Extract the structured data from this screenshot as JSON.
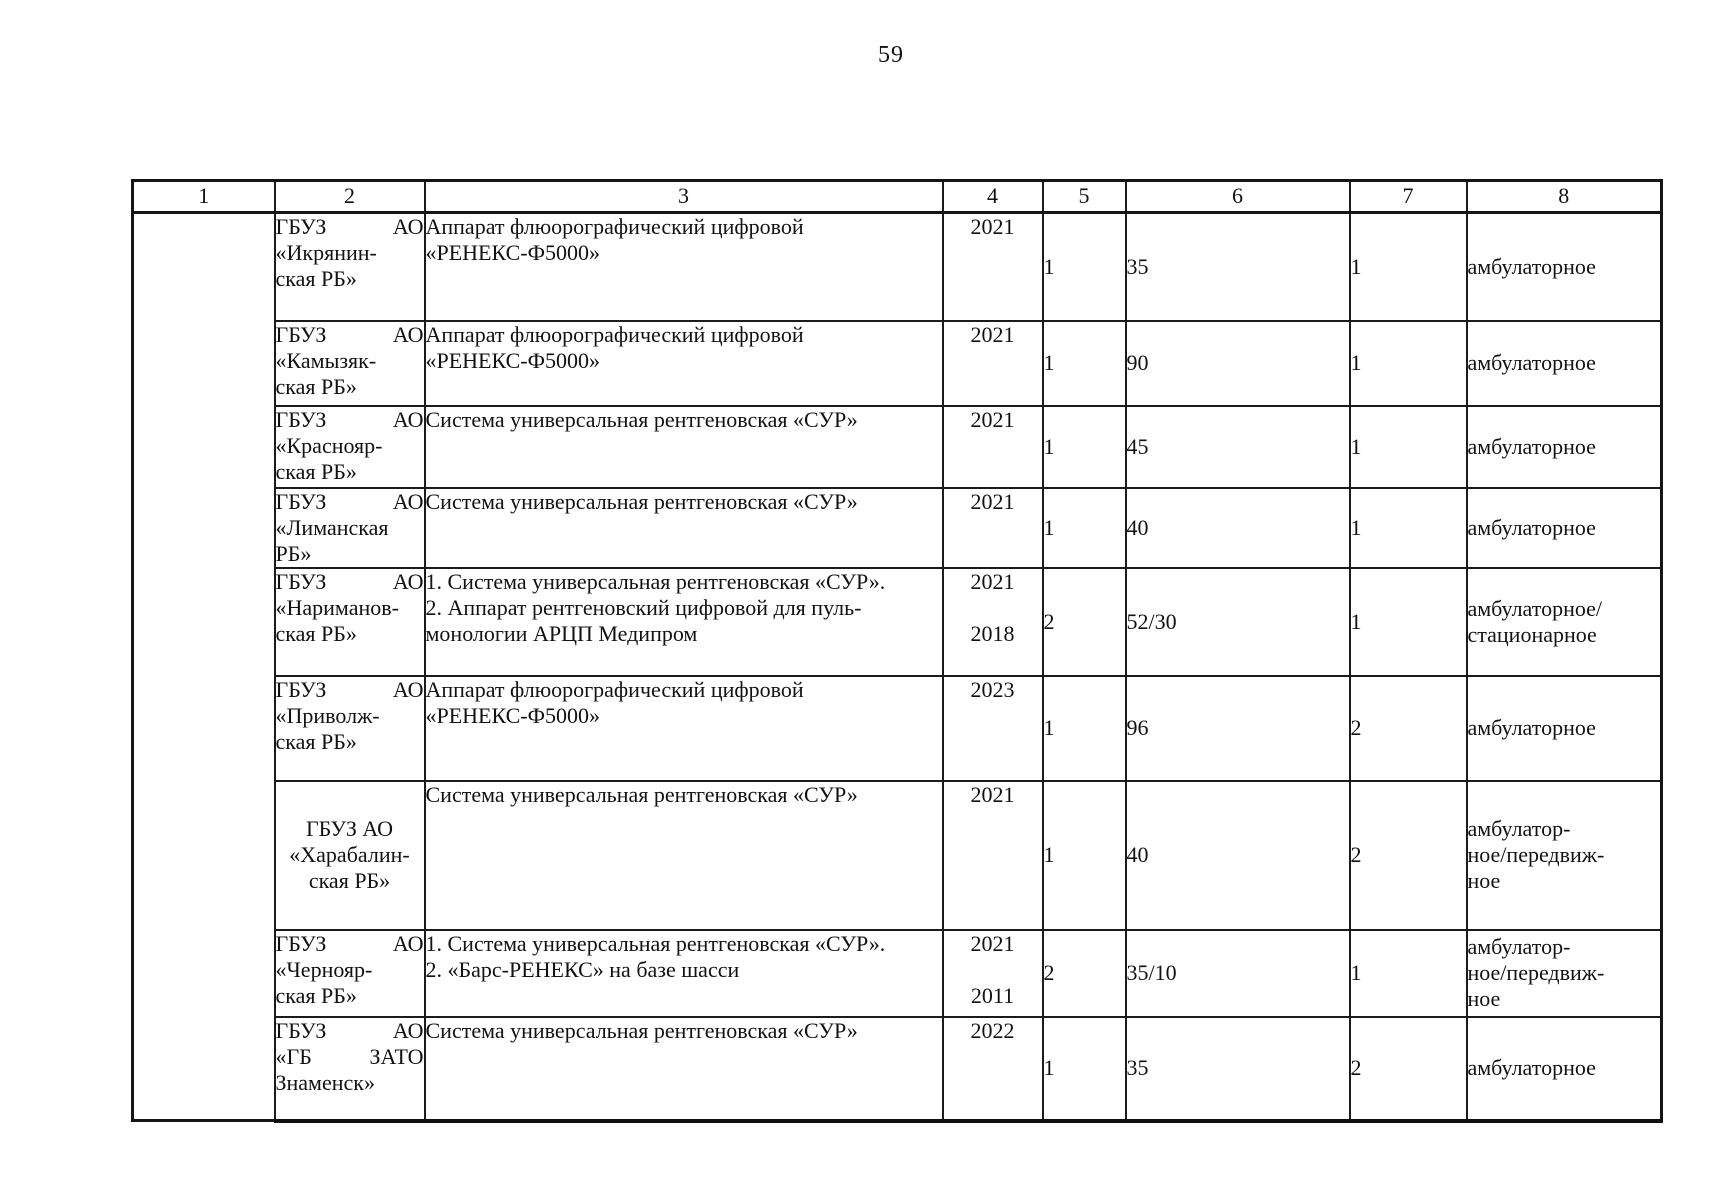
{
  "page": {
    "number": "59"
  },
  "table": {
    "column_headers": [
      "1",
      "2",
      "3",
      "4",
      "5",
      "6",
      "7",
      "8"
    ],
    "rows": [
      {
        "facility_lines": [
          [
            "ГБУЗ",
            "АО"
          ],
          "«Икрянин-",
          "ская РБ»"
        ],
        "equipment_lines": [
          "Аппарат флюорографический цифровой",
          "«РЕНЕКС-Ф5000»"
        ],
        "year_lines": [
          "2021"
        ],
        "quantity": "1",
        "capacity": "35",
        "units": "1",
        "care_type_lines": [
          "амбулаторное"
        ]
      },
      {
        "facility_lines": [
          [
            "ГБУЗ",
            "АО"
          ],
          "«Камызяк-",
          "ская РБ»"
        ],
        "equipment_lines": [
          "Аппарат флюорографический цифровой",
          "«РЕНЕКС-Ф5000»"
        ],
        "year_lines": [
          "2021"
        ],
        "quantity": "1",
        "capacity": "90",
        "units": "1",
        "care_type_lines": [
          "амбулаторное"
        ]
      },
      {
        "facility_lines": [
          [
            "ГБУЗ",
            "АО"
          ],
          "«Краснояр-",
          "ская РБ»"
        ],
        "equipment_lines": [
          "Система универсальная рентгеновская «СУР»"
        ],
        "year_lines": [
          "2021"
        ],
        "quantity": "1",
        "capacity": "45",
        "units": "1",
        "care_type_lines": [
          "амбулаторное"
        ]
      },
      {
        "facility_lines": [
          [
            "ГБУЗ",
            "АО"
          ],
          "«Лиманская",
          "РБ»"
        ],
        "equipment_lines": [
          "Система универсальная рентгеновская «СУР»"
        ],
        "year_lines": [
          "2021"
        ],
        "quantity": "1",
        "capacity": "40",
        "units": "1",
        "care_type_lines": [
          "амбулаторное"
        ]
      },
      {
        "facility_lines": [
          [
            "ГБУЗ",
            "АО"
          ],
          "«Нариманов-",
          "ская РБ»"
        ],
        "equipment_lines": [
          "1. Система универсальная рентгеновская «СУР».",
          "2. Аппарат рентгеновский цифровой для пуль-",
          "монологии АРЦП Медипром"
        ],
        "year_lines": [
          "2021",
          "",
          "2018"
        ],
        "quantity": "2",
        "capacity": "52/30",
        "units": "1",
        "care_type_lines": [
          "амбулаторное/",
          "стационарное"
        ]
      },
      {
        "facility_lines": [
          [
            "ГБУЗ",
            "АО"
          ],
          "«Приволж-",
          "ская РБ»"
        ],
        "equipment_lines": [
          "Аппарат флюорографический цифровой",
          "«РЕНЕКС-Ф5000»"
        ],
        "year_lines": [
          "2023"
        ],
        "quantity": "1",
        "capacity": "96",
        "units": "2",
        "care_type_lines": [
          "амбулаторное"
        ]
      },
      {
        "facility_lines": [
          "ГБУЗ АО",
          "«Харабалин-",
          "ская РБ»"
        ],
        "equipment_lines": [
          "Система универсальная рентгеновская «СУР»"
        ],
        "year_lines": [
          "2021"
        ],
        "quantity": "1",
        "capacity": "40",
        "units": "2",
        "care_type_lines": [
          "амбулатор-",
          "ное/передвиж-",
          "ное"
        ]
      },
      {
        "facility_lines": [
          [
            "ГБУЗ",
            "АО"
          ],
          "«Чернояр-",
          "ская РБ»"
        ],
        "equipment_lines": [
          "1. Система универсальная рентгеновская «СУР».",
          "2.  «Барс-РЕНЕКС» на базе шасси"
        ],
        "year_lines": [
          "2021",
          "",
          "2011"
        ],
        "quantity": "2",
        "capacity": "35/10",
        "units": "1",
        "care_type_lines": [
          "амбулатор-",
          "ное/передвиж-",
          "ное"
        ]
      },
      {
        "facility_lines": [
          [
            "ГБУЗ",
            "АО"
          ],
          [
            "«ГБ",
            "ЗАТО"
          ],
          "Знаменск»"
        ],
        "equipment_lines": [
          "Система универсальная рентгеновская «СУР»"
        ],
        "year_lines": [
          "2022"
        ],
        "quantity": "1",
        "capacity": "35",
        "units": "2",
        "care_type_lines": [
          "амбулаторное"
        ]
      }
    ]
  }
}
